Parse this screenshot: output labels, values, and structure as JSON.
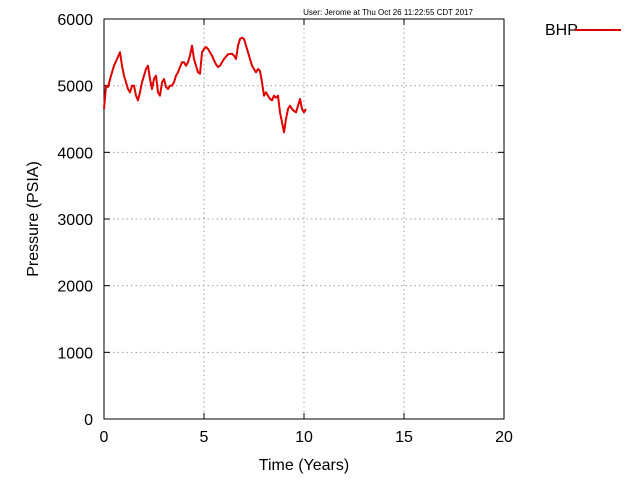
{
  "annotation": "User: Jerome at Thu Oct 26 11:22:55 CDT 2017",
  "chart_data": {
    "type": "line",
    "xlabel": "Time (Years)",
    "ylabel": "Pressure (PSIA)",
    "xlim": [
      0,
      20
    ],
    "ylim": [
      0,
      6000
    ],
    "xticks": [
      0,
      5,
      10,
      15,
      20
    ],
    "yticks": [
      0,
      1000,
      2000,
      3000,
      4000,
      5000,
      6000
    ],
    "grid": true,
    "legend_position": "top-right, outside plot",
    "series": [
      {
        "name": "BHP",
        "color": "#e00000",
        "x": [
          0.0,
          0.1,
          0.2,
          0.35,
          0.5,
          0.65,
          0.8,
          0.9,
          1.0,
          1.1,
          1.2,
          1.3,
          1.4,
          1.5,
          1.6,
          1.7,
          1.8,
          1.9,
          2.0,
          2.1,
          2.2,
          2.3,
          2.4,
          2.5,
          2.6,
          2.7,
          2.8,
          2.9,
          3.0,
          3.1,
          3.2,
          3.3,
          3.4,
          3.5,
          3.6,
          3.7,
          3.8,
          3.9,
          4.0,
          4.1,
          4.2,
          4.3,
          4.4,
          4.5,
          4.6,
          4.7,
          4.8,
          4.9,
          5.0,
          5.1,
          5.2,
          5.3,
          5.4,
          5.5,
          5.6,
          5.7,
          5.8,
          5.9,
          6.0,
          6.2,
          6.4,
          6.5,
          6.6,
          6.7,
          6.8,
          6.9,
          7.0,
          7.1,
          7.2,
          7.3,
          7.4,
          7.5,
          7.6,
          7.7,
          7.8,
          7.9,
          8.0,
          8.1,
          8.2,
          8.3,
          8.4,
          8.5,
          8.6,
          8.7,
          8.8,
          8.9,
          9.0,
          9.1,
          9.2,
          9.3,
          9.4,
          9.5,
          9.6,
          9.7,
          9.8,
          9.9,
          10.0,
          10.1
        ],
        "values": [
          4650,
          5000,
          4980,
          5150,
          5300,
          5400,
          5500,
          5300,
          5150,
          5050,
          4950,
          4900,
          5000,
          5000,
          4850,
          4780,
          4900,
          5050,
          5150,
          5250,
          5300,
          5100,
          4950,
          5100,
          5150,
          4900,
          4850,
          5050,
          5100,
          4980,
          4950,
          5000,
          5000,
          5050,
          5150,
          5200,
          5280,
          5350,
          5350,
          5300,
          5350,
          5450,
          5600,
          5400,
          5300,
          5200,
          5180,
          5500,
          5550,
          5580,
          5550,
          5500,
          5450,
          5380,
          5320,
          5280,
          5300,
          5350,
          5400,
          5470,
          5480,
          5450,
          5400,
          5600,
          5700,
          5720,
          5700,
          5600,
          5500,
          5400,
          5300,
          5250,
          5200,
          5250,
          5220,
          5050,
          4850,
          4900,
          4850,
          4800,
          4780,
          4850,
          4820,
          4850,
          4600,
          4450,
          4300,
          4500,
          4650,
          4700,
          4650,
          4620,
          4600,
          4700,
          4800,
          4650,
          4600,
          4650
        ]
      }
    ]
  }
}
